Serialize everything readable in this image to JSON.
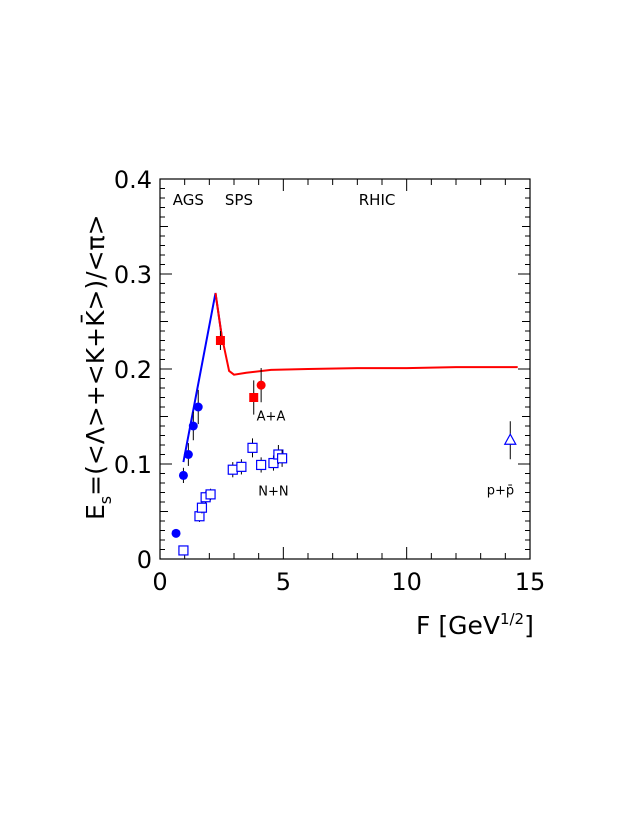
{
  "chart_data": {
    "type": "scatter",
    "xlabel": "F [GeV",
    "xlabel_superscript": "1/2",
    "xlabel_close": "]",
    "ylabel_main": "E",
    "ylabel_sub": "s",
    "ylabel_rest": "=(<Λ>+<K+K̄>)/<π>",
    "xlim": [
      0,
      15
    ],
    "ylim": [
      0,
      0.4
    ],
    "x_ticks": [
      0,
      5,
      10,
      15
    ],
    "x_tick_labels": [
      "0",
      "5",
      "10",
      "15"
    ],
    "y_ticks": [
      0,
      0.1,
      0.2,
      0.3,
      0.4
    ],
    "y_tick_labels": [
      "0",
      "0.1",
      "0.2",
      "0.3",
      "0.4"
    ],
    "grid": false,
    "region_labels": [
      {
        "text": "AGS",
        "x": 1.15
      },
      {
        "text": "SPS",
        "x": 3.2
      },
      {
        "text": "RHIC",
        "x": 8.8
      }
    ],
    "annotations": [
      {
        "text": "A+A",
        "x": 4.5,
        "y": 0.146
      },
      {
        "text": "N+N",
        "x": 4.6,
        "y": 0.067
      },
      {
        "text": "p+p̄",
        "x": 13.8,
        "y": 0.068
      }
    ],
    "series": [
      {
        "marker": "circle-filled",
        "color": "#0000ff",
        "points": [
          {
            "x": 0.65,
            "y": 0.027,
            "err": 0
          },
          {
            "x": 0.95,
            "y": 0.088,
            "err": 0.008
          },
          {
            "x": 1.15,
            "y": 0.11,
            "err": 0.012
          },
          {
            "x": 1.35,
            "y": 0.14,
            "err": 0.015
          },
          {
            "x": 1.55,
            "y": 0.16,
            "err": 0.018
          }
        ]
      },
      {
        "marker": "square-filled",
        "color": "#ff0000",
        "points": [
          {
            "x": 2.45,
            "y": 0.23,
            "err": 0.01
          },
          {
            "x": 3.8,
            "y": 0.17,
            "err": 0.018
          }
        ]
      },
      {
        "marker": "circle-filled",
        "color": "#ff0000",
        "points": [
          {
            "x": 4.1,
            "y": 0.183,
            "err": 0.018
          }
        ]
      },
      {
        "marker": "square-open",
        "color": "#0000ff",
        "points": [
          {
            "x": 0.95,
            "y": 0.009,
            "err": 0
          },
          {
            "x": 1.6,
            "y": 0.045,
            "err": 0.006
          },
          {
            "x": 1.7,
            "y": 0.054,
            "err": 0.006
          },
          {
            "x": 1.85,
            "y": 0.065,
            "err": 0.006
          },
          {
            "x": 2.05,
            "y": 0.068,
            "err": 0.006
          },
          {
            "x": 2.95,
            "y": 0.094,
            "err": 0.008
          },
          {
            "x": 3.3,
            "y": 0.097,
            "err": 0.008
          },
          {
            "x": 3.75,
            "y": 0.117,
            "err": 0.01
          },
          {
            "x": 4.1,
            "y": 0.099,
            "err": 0.008
          },
          {
            "x": 4.6,
            "y": 0.101,
            "err": 0.008
          },
          {
            "x": 4.8,
            "y": 0.11,
            "err": 0.01
          },
          {
            "x": 4.95,
            "y": 0.106,
            "err": 0.009
          }
        ]
      },
      {
        "marker": "triangle-open",
        "color": "#0000ff",
        "points": [
          {
            "x": 14.2,
            "y": 0.125,
            "err": 0.02
          }
        ]
      }
    ],
    "lines": [
      {
        "color": "#0000ff",
        "points": [
          [
            0.95,
            0.102
          ],
          [
            2.25,
            0.28
          ],
          [
            2.5,
            0.235
          ]
        ]
      },
      {
        "color": "#ff0000",
        "points": [
          [
            2.25,
            0.28
          ],
          [
            2.5,
            0.235
          ],
          [
            2.8,
            0.198
          ],
          [
            3.0,
            0.194
          ],
          [
            3.5,
            0.196
          ],
          [
            4.5,
            0.199
          ],
          [
            6,
            0.2
          ],
          [
            8,
            0.201
          ],
          [
            10,
            0.201
          ],
          [
            12,
            0.202
          ],
          [
            14.5,
            0.202
          ]
        ]
      }
    ]
  }
}
